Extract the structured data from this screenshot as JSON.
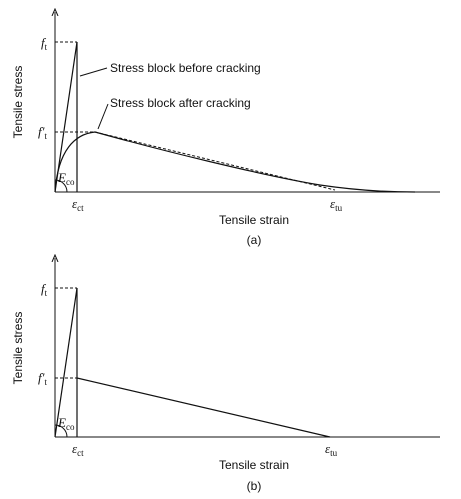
{
  "panels": [
    {
      "y_axis_label": "Tensile stress",
      "x_axis_label": "Tensile strain",
      "caption": "(a)",
      "ft": {
        "symbol": "f",
        "subscript": "t"
      },
      "ft_prime": {
        "symbol": "f′",
        "subscript": "t"
      },
      "eco": {
        "symbol": "E",
        "subscript": "co"
      },
      "ect": {
        "symbol": "ε",
        "subscript": "ct"
      },
      "etu": {
        "symbol": "ε",
        "subscript": "tu"
      },
      "annotations": [
        "Stress block before cracking",
        "Stress block after cracking"
      ]
    },
    {
      "y_axis_label": "Tensile stress",
      "x_axis_label": "Tensile strain",
      "caption": "(b)",
      "ft": {
        "symbol": "f",
        "subscript": "t"
      },
      "ft_prime": {
        "symbol": "f′",
        "subscript": "t"
      },
      "eco": {
        "symbol": "E",
        "subscript": "co"
      },
      "ect": {
        "symbol": "ε",
        "subscript": "ct"
      },
      "etu": {
        "symbol": "ε",
        "subscript": "tu"
      }
    }
  ]
}
